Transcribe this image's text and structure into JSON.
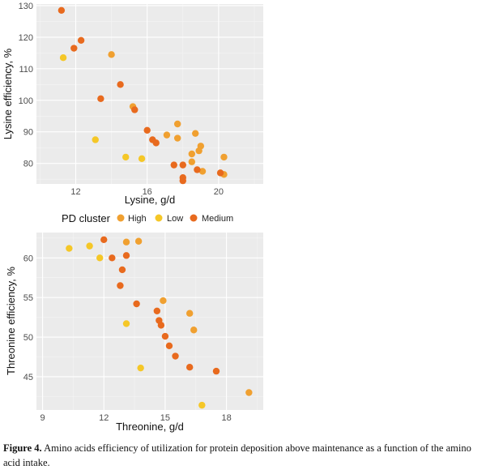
{
  "chart_data": [
    {
      "type": "scatter",
      "title": "",
      "xlabel": "Lysine, g/d",
      "ylabel": "Lysine efficiency, %",
      "xlim": [
        9.8,
        22.5
      ],
      "ylim": [
        73.5,
        130.5
      ],
      "xticks": [
        12,
        16,
        20
      ],
      "yticks": [
        80,
        90,
        100,
        110,
        120,
        130
      ],
      "series": [
        {
          "name": "High",
          "points": [
            [
              14.0,
              114.5
            ],
            [
              15.2,
              98.0
            ],
            [
              17.1,
              89.0
            ],
            [
              17.7,
              92.5
            ],
            [
              17.7,
              88.0
            ],
            [
              18.5,
              83.0
            ],
            [
              18.5,
              80.5
            ],
            [
              18.7,
              89.5
            ],
            [
              18.9,
              84.0
            ],
            [
              19.0,
              85.5
            ],
            [
              19.1,
              77.5
            ],
            [
              20.3,
              82.0
            ],
            [
              20.3,
              76.5
            ]
          ]
        },
        {
          "name": "Low",
          "points": [
            [
              11.3,
              113.5
            ],
            [
              13.1,
              87.5
            ],
            [
              14.8,
              82.0
            ],
            [
              15.7,
              81.5
            ]
          ]
        },
        {
          "name": "Medium",
          "points": [
            [
              11.2,
              128.5
            ],
            [
              11.9,
              116.5
            ],
            [
              12.3,
              119.0
            ],
            [
              13.4,
              100.5
            ],
            [
              14.5,
              105.0
            ],
            [
              15.3,
              97.0
            ],
            [
              16.0,
              90.5
            ],
            [
              16.3,
              87.5
            ],
            [
              16.5,
              86.5
            ],
            [
              17.5,
              79.5
            ],
            [
              18.0,
              79.5
            ],
            [
              18.0,
              75.5
            ],
            [
              18.0,
              74.5
            ],
            [
              18.8,
              78.0
            ],
            [
              20.1,
              77.0
            ]
          ]
        }
      ]
    },
    {
      "type": "scatter",
      "title": "",
      "xlabel": "Threonine, g/d",
      "ylabel": "Threonine efficiency, %",
      "xlim": [
        8.7,
        19.8
      ],
      "ylim": [
        40.8,
        63.2
      ],
      "xticks": [
        9,
        12,
        15,
        18
      ],
      "yticks": [
        45,
        50,
        55,
        60
      ],
      "series": [
        {
          "name": "High",
          "points": [
            [
              13.1,
              62.0
            ],
            [
              13.7,
              62.1
            ],
            [
              14.9,
              54.6
            ],
            [
              16.2,
              53.0
            ],
            [
              16.4,
              50.9
            ],
            [
              19.1,
              43.0
            ]
          ]
        },
        {
          "name": "Low",
          "points": [
            [
              10.3,
              61.2
            ],
            [
              11.3,
              61.5
            ],
            [
              11.8,
              60.0
            ],
            [
              13.1,
              51.7
            ],
            [
              13.8,
              46.1
            ],
            [
              16.8,
              41.4
            ]
          ]
        },
        {
          "name": "Medium",
          "points": [
            [
              12.0,
              62.3
            ],
            [
              12.4,
              60.0
            ],
            [
              12.9,
              58.5
            ],
            [
              12.8,
              56.5
            ],
            [
              13.1,
              60.3
            ],
            [
              13.6,
              54.2
            ],
            [
              14.6,
              53.3
            ],
            [
              14.7,
              52.1
            ],
            [
              14.8,
              51.5
            ],
            [
              15.0,
              50.1
            ],
            [
              15.2,
              48.9
            ],
            [
              15.5,
              47.6
            ],
            [
              16.2,
              46.2
            ],
            [
              17.5,
              45.7
            ]
          ]
        }
      ]
    }
  ],
  "legend": {
    "title": "PD cluster",
    "entries": [
      {
        "label": "High",
        "color": "#f0a030"
      },
      {
        "label": "Low",
        "color": "#f5c727"
      },
      {
        "label": "Medium",
        "color": "#e86a1e"
      }
    ]
  },
  "colors": {
    "panel_bg": "#ebebeb",
    "grid_major": "#ffffff",
    "grid_minor": "#f5f5f5",
    "axis_text": "#4d4d4d"
  },
  "caption": {
    "label": "Figure 4.",
    "text": " Amino acids efficiency of utilization for protein deposition above maintenance as a function of the amino acid intake."
  }
}
